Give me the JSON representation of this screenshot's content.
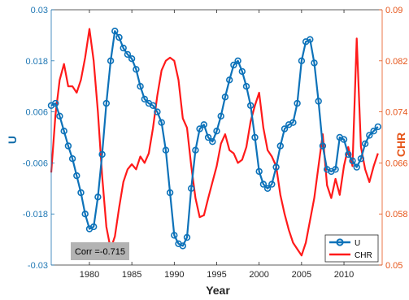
{
  "chart_data": {
    "type": "line",
    "xlabel": "Year",
    "ylabel_left": "U",
    "ylabel_right": "CHR",
    "xlim": [
      1975.5,
      2014.5
    ],
    "ylim_left": [
      -0.03,
      0.03
    ],
    "ylim_right": [
      0.05,
      0.09
    ],
    "x_ticks": [
      "1980",
      "1985",
      "1990",
      "1995",
      "2000",
      "2005",
      "2010"
    ],
    "left_ticks": [
      "0.03",
      "0.018",
      "0.006",
      "-0.006",
      "-0.018",
      "-0.03"
    ],
    "right_ticks": [
      "0.09",
      "0.082",
      "0.074",
      "0.066",
      "0.058",
      "0.05"
    ],
    "annotation": "Corr =-0.715",
    "legend_position": "bottom-right",
    "colors": {
      "U": "#0d72b9",
      "CHR": "#ff1a1a",
      "left_axis": "#1f77b4",
      "right_axis": "#e6551a",
      "annotation_bg": "#b3b3b3"
    },
    "series": [
      {
        "name": "U",
        "axis": "left",
        "marker": "circle",
        "points": [
          [
            1975.5,
            0.0075
          ],
          [
            1976,
            0.008
          ],
          [
            1976.5,
            0.005
          ],
          [
            1977,
            0.0015
          ],
          [
            1977.5,
            -0.002
          ],
          [
            1978,
            -0.005
          ],
          [
            1978.5,
            -0.009
          ],
          [
            1979,
            -0.013
          ],
          [
            1979.5,
            -0.018
          ],
          [
            1980,
            -0.0215
          ],
          [
            1980.5,
            -0.021
          ],
          [
            1981,
            -0.014
          ],
          [
            1981.5,
            -0.004
          ],
          [
            1982,
            0.008
          ],
          [
            1982.5,
            0.018
          ],
          [
            1983,
            0.025
          ],
          [
            1983.5,
            0.0235
          ],
          [
            1984,
            0.021
          ],
          [
            1984.5,
            0.0195
          ],
          [
            1985,
            0.0185
          ],
          [
            1985.5,
            0.016
          ],
          [
            1986,
            0.012
          ],
          [
            1986.5,
            0.009
          ],
          [
            1987,
            0.008
          ],
          [
            1987.5,
            0.0075
          ],
          [
            1988,
            0.006
          ],
          [
            1988.5,
            0.0035
          ],
          [
            1989,
            -0.003
          ],
          [
            1989.5,
            -0.013
          ],
          [
            1990,
            -0.023
          ],
          [
            1990.5,
            -0.025
          ],
          [
            1991,
            -0.0255
          ],
          [
            1991.5,
            -0.0235
          ],
          [
            1992,
            -0.012
          ],
          [
            1992.5,
            -0.003
          ],
          [
            1993,
            0.002
          ],
          [
            1993.5,
            0.003
          ],
          [
            1994,
            0.0
          ],
          [
            1994.5,
            -0.001
          ],
          [
            1995,
            0.0015
          ],
          [
            1995.5,
            0.005
          ],
          [
            1996,
            0.0095
          ],
          [
            1996.5,
            0.0135
          ],
          [
            1997,
            0.017
          ],
          [
            1997.5,
            0.018
          ],
          [
            1998,
            0.0155
          ],
          [
            1998.5,
            0.012
          ],
          [
            1999,
            0.0075
          ],
          [
            1999.5,
            0.0
          ],
          [
            2000,
            -0.008
          ],
          [
            2000.5,
            -0.011
          ],
          [
            2001,
            -0.012
          ],
          [
            2001.5,
            -0.011
          ],
          [
            2002,
            -0.007
          ],
          [
            2002.5,
            -0.002
          ],
          [
            2003,
            0.002
          ],
          [
            2003.5,
            0.003
          ],
          [
            2004,
            0.0035
          ],
          [
            2004.5,
            0.008
          ],
          [
            2005,
            0.018
          ],
          [
            2005.5,
            0.0225
          ],
          [
            2006,
            0.023
          ],
          [
            2006.5,
            0.0175
          ],
          [
            2007,
            0.0085
          ],
          [
            2007.5,
            -0.002
          ],
          [
            2008,
            -0.0075
          ],
          [
            2008.5,
            -0.008
          ],
          [
            2009,
            -0.0075
          ],
          [
            2009.5,
            0.0
          ],
          [
            2010,
            -0.0005
          ],
          [
            2010.5,
            -0.004
          ],
          [
            2011,
            -0.0055
          ],
          [
            2011.5,
            -0.007
          ],
          [
            2012,
            -0.005
          ],
          [
            2012.5,
            -0.0015
          ],
          [
            2013,
            0.0005
          ],
          [
            2013.5,
            0.0015
          ],
          [
            2014,
            0.0025
          ]
        ]
      },
      {
        "name": "CHR",
        "axis": "right",
        "points": [
          [
            1975.5,
            0.0645
          ],
          [
            1976,
            0.0735
          ],
          [
            1976.5,
            0.079
          ],
          [
            1977,
            0.0815
          ],
          [
            1977.5,
            0.078
          ],
          [
            1978,
            0.078
          ],
          [
            1978.5,
            0.077
          ],
          [
            1979,
            0.079
          ],
          [
            1979.5,
            0.0825
          ],
          [
            1980,
            0.087
          ],
          [
            1980.5,
            0.082
          ],
          [
            1981,
            0.074
          ],
          [
            1981.5,
            0.064
          ],
          [
            1982,
            0.056
          ],
          [
            1982.5,
            0.0525
          ],
          [
            1983,
            0.0545
          ],
          [
            1983.5,
            0.059
          ],
          [
            1984,
            0.063
          ],
          [
            1984.5,
            0.065
          ],
          [
            1985,
            0.0658
          ],
          [
            1985.5,
            0.065
          ],
          [
            1986,
            0.067
          ],
          [
            1986.5,
            0.066
          ],
          [
            1987,
            0.0675
          ],
          [
            1987.5,
            0.0715
          ],
          [
            1988,
            0.0765
          ],
          [
            1988.5,
            0.0805
          ],
          [
            1989,
            0.082
          ],
          [
            1989.5,
            0.0825
          ],
          [
            1990,
            0.082
          ],
          [
            1990.5,
            0.079
          ],
          [
            1991,
            0.073
          ],
          [
            1991.5,
            0.0715
          ],
          [
            1992,
            0.0655
          ],
          [
            1992.5,
            0.0605
          ],
          [
            1993,
            0.0575
          ],
          [
            1993.5,
            0.0578
          ],
          [
            1994,
            0.0605
          ],
          [
            1994.5,
            0.063
          ],
          [
            1995,
            0.0655
          ],
          [
            1995.5,
            0.069
          ],
          [
            1996,
            0.0705
          ],
          [
            1996.5,
            0.068
          ],
          [
            1997,
            0.0675
          ],
          [
            1997.5,
            0.066
          ],
          [
            1998,
            0.0665
          ],
          [
            1998.5,
            0.0685
          ],
          [
            1999,
            0.0725
          ],
          [
            1999.5,
            0.075
          ],
          [
            2000,
            0.077
          ],
          [
            2000.5,
            0.0715
          ],
          [
            2001,
            0.068
          ],
          [
            2001.5,
            0.067
          ],
          [
            2002,
            0.0655
          ],
          [
            2002.5,
            0.061
          ],
          [
            2003,
            0.058
          ],
          [
            2003.5,
            0.0555
          ],
          [
            2004,
            0.0535
          ],
          [
            2004.5,
            0.0525
          ],
          [
            2005,
            0.0515
          ],
          [
            2005.5,
            0.0535
          ],
          [
            2006,
            0.057
          ],
          [
            2006.5,
            0.0605
          ],
          [
            2007,
            0.0655
          ],
          [
            2007.5,
            0.0705
          ],
          [
            2008,
            0.0625
          ],
          [
            2008.5,
            0.0605
          ],
          [
            2009,
            0.0635
          ],
          [
            2009.5,
            0.061
          ],
          [
            2010,
            0.0655
          ],
          [
            2010.5,
            0.0685
          ],
          [
            2011,
            0.0655
          ],
          [
            2011.5,
            0.0855
          ],
          [
            2012,
            0.0685
          ],
          [
            2012.5,
            0.065
          ],
          [
            2013,
            0.063
          ],
          [
            2013.5,
            0.0655
          ],
          [
            2014,
            0.0675
          ]
        ]
      }
    ]
  }
}
